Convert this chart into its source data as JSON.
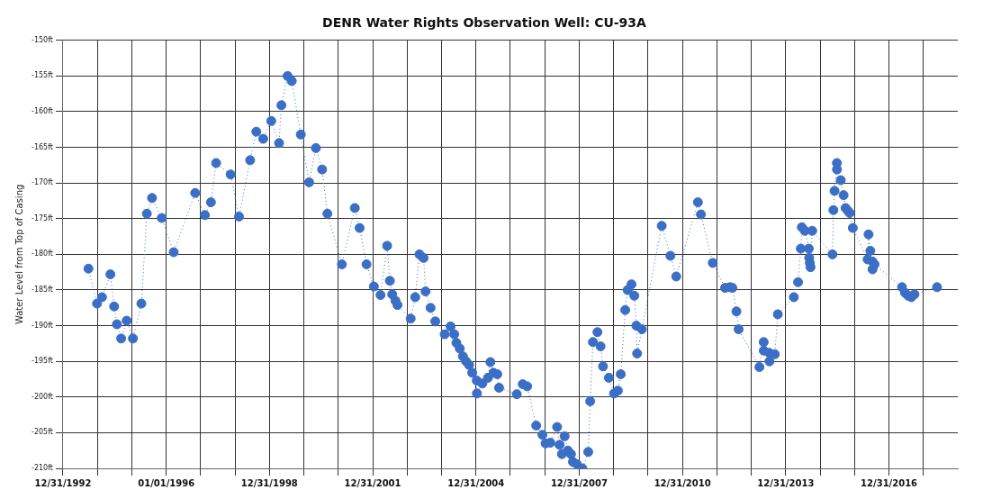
{
  "chart_data": {
    "type": "line",
    "title": "DENR Water Rights Observation Well: CU-93A",
    "ylabel": "Water Level from Top of Casing",
    "xlim": [
      "1992-12-31",
      "2018-12-31"
    ],
    "xticks": [
      {
        "value": "1992-12-31",
        "label": "12/31/1992"
      },
      {
        "value": "1993-12-31",
        "label": null
      },
      {
        "value": "1994-12-31",
        "label": null
      },
      {
        "value": "1996-01-01",
        "label": "01/01/1996"
      },
      {
        "value": "1996-12-31",
        "label": null
      },
      {
        "value": "1997-12-31",
        "label": null
      },
      {
        "value": "1998-12-31",
        "label": "12/31/1998"
      },
      {
        "value": "1999-12-31",
        "label": null
      },
      {
        "value": "2000-12-31",
        "label": null
      },
      {
        "value": "2001-12-31",
        "label": "12/31/2001"
      },
      {
        "value": "2002-12-31",
        "label": null
      },
      {
        "value": "2003-12-31",
        "label": null
      },
      {
        "value": "2004-12-31",
        "label": "12/31/2004"
      },
      {
        "value": "2005-12-31",
        "label": null
      },
      {
        "value": "2006-12-31",
        "label": null
      },
      {
        "value": "2007-12-31",
        "label": "12/31/2007"
      },
      {
        "value": "2008-12-31",
        "label": null
      },
      {
        "value": "2009-12-31",
        "label": null
      },
      {
        "value": "2010-12-31",
        "label": "12/31/2010"
      },
      {
        "value": "2011-12-31",
        "label": null
      },
      {
        "value": "2012-12-31",
        "label": null
      },
      {
        "value": "2013-12-31",
        "label": "12/31/2013"
      },
      {
        "value": "2014-12-31",
        "label": null
      },
      {
        "value": "2015-12-31",
        "label": null
      },
      {
        "value": "2016-12-31",
        "label": "12/31/2016"
      },
      {
        "value": "2017-12-31",
        "label": null
      }
    ],
    "ylim": [
      -210,
      -150
    ],
    "yticks": [
      {
        "value": -150,
        "label": "-150ft"
      },
      {
        "value": -155,
        "label": "-155ft"
      },
      {
        "value": -160,
        "label": "-160ft"
      },
      {
        "value": -165,
        "label": "-165ft"
      },
      {
        "value": -170,
        "label": "-170ft"
      },
      {
        "value": -175,
        "label": "-175ft"
      },
      {
        "value": -180,
        "label": "-180ft"
      },
      {
        "value": -185,
        "label": "-185ft"
      },
      {
        "value": -190,
        "label": "-190ft"
      },
      {
        "value": -195,
        "label": "-195ft"
      },
      {
        "value": -200,
        "label": "-200ft"
      },
      {
        "value": -205,
        "label": "-205ft"
      },
      {
        "value": -210,
        "label": "-210ft"
      }
    ],
    "grid": true,
    "legend": false,
    "marker": "circle",
    "line_style": "dotted",
    "x": [
      "1993-09-27",
      "1993-12-27",
      "1994-02-18",
      "1994-05-18",
      "1994-06-27",
      "1994-07-26",
      "1994-09-09",
      "1994-11-07",
      "1995-01-12",
      "1995-04-12",
      "1995-06-09",
      "1995-08-03",
      "1995-11-14",
      "1996-03-20",
      "1996-11-03",
      "1997-02-14",
      "1997-04-19",
      "1997-06-13",
      "1997-11-14",
      "1998-02-11",
      "1998-06-09",
      "1998-08-14",
      "1998-10-26",
      "1999-01-19",
      "1999-04-12",
      "1999-05-07",
      "1999-07-12",
      "1999-08-25",
      "1999-11-29",
      "2000-02-25",
      "2000-05-07",
      "2000-07-12",
      "2000-09-06",
      "2001-02-07",
      "2001-06-24",
      "2001-08-14",
      "2001-10-26",
      "2002-01-12",
      "2002-03-24",
      "2002-06-02",
      "2002-07-01",
      "2002-07-26",
      "2002-08-29",
      "2002-09-20",
      "2003-02-07",
      "2003-03-27",
      "2003-05-11",
      "2003-06-24",
      "2003-07-15",
      "2003-09-06",
      "2003-10-26",
      "2004-02-03",
      "2004-04-05",
      "2004-05-14",
      "2004-06-06",
      "2004-07-12",
      "2004-08-14",
      "2004-09-17",
      "2004-10-19",
      "2004-11-21",
      "2005-01-08",
      "2005-01-10",
      "2005-03-09",
      "2005-05-07",
      "2005-06-02",
      "2005-07-05",
      "2005-08-14",
      "2005-09-02",
      "2006-03-09",
      "2006-05-11",
      "2006-06-27",
      "2006-10-01",
      "2006-12-06",
      "2007-01-08",
      "2007-02-28",
      "2007-05-11",
      "2007-06-06",
      "2007-07-01",
      "2007-07-30",
      "2007-09-02",
      "2007-10-05",
      "2007-10-26",
      "2007-12-06",
      "2008-02-03",
      "2008-04-05",
      "2008-04-26",
      "2008-05-25",
      "2008-07-12",
      "2008-08-14",
      "2008-09-09",
      "2008-11-10",
      "2009-01-04",
      "2009-02-14",
      "2009-03-16",
      "2009-05-03",
      "2009-05-28",
      "2009-07-08",
      "2009-08-07",
      "2009-08-29",
      "2009-09-06",
      "2009-10-26",
      "2010-05-25",
      "2010-08-25",
      "2010-10-26",
      "2011-06-13",
      "2011-07-15",
      "2011-11-18",
      "2012-03-27",
      "2012-05-18",
      "2012-06-13",
      "2012-07-26",
      "2012-08-18",
      "2013-03-27",
      "2013-05-11",
      "2013-05-12",
      "2013-07-08",
      "2013-07-11",
      "2013-09-06",
      "2013-10-08",
      "2014-03-27",
      "2014-05-11",
      "2014-06-09",
      "2014-06-20",
      "2014-07-22",
      "2014-09-02",
      "2014-09-06",
      "2014-09-13",
      "2014-09-20",
      "2014-10-08",
      "2015-05-11",
      "2015-05-21",
      "2015-06-02",
      "2015-06-27",
      "2015-06-28",
      "2015-08-07",
      "2015-09-06",
      "2015-09-27",
      "2015-10-22",
      "2015-11-10",
      "2015-12-13",
      "2016-05-18",
      "2016-05-28",
      "2016-06-16",
      "2016-07-08",
      "2016-07-09",
      "2016-07-30",
      "2017-05-18",
      "2017-06-20",
      "2017-07-22",
      "2017-08-25",
      "2017-09-27",
      "2018-05-25"
    ],
    "series": [
      {
        "color": "#3b6fc6",
        "values": [
          -182.0,
          -186.9,
          -186.0,
          -182.8,
          -187.3,
          -189.8,
          -191.8,
          -189.3,
          -191.8,
          -186.9,
          -174.3,
          -172.1,
          -174.9,
          -179.7,
          -171.4,
          -174.5,
          -172.7,
          -167.2,
          -168.8,
          -174.7,
          -166.8,
          -162.8,
          -163.8,
          -161.3,
          -164.4,
          -159.1,
          -155.0,
          -155.7,
          -163.2,
          -169.9,
          -165.1,
          -168.1,
          -174.3,
          -181.4,
          -173.5,
          -176.3,
          -181.4,
          -184.5,
          -185.7,
          -178.8,
          -183.7,
          -185.6,
          -186.5,
          -187.1,
          -189.0,
          -186.0,
          -180.0,
          -180.5,
          -185.2,
          -187.5,
          -189.4,
          -191.2,
          -190.1,
          -191.2,
          -192.4,
          -193.2,
          -194.3,
          -195.0,
          -195.5,
          -196.6,
          -197.7,
          -199.5,
          -198.1,
          -197.3,
          -195.1,
          -196.6,
          -196.8,
          -198.7,
          -199.6,
          -198.2,
          -198.5,
          -204.0,
          -205.3,
          -206.5,
          -206.4,
          -204.2,
          -206.7,
          -208.0,
          -205.5,
          -207.5,
          -208.0,
          -209.1,
          -209.4,
          -210.0,
          -207.7,
          -200.6,
          -192.3,
          -190.9,
          -192.9,
          -195.7,
          -197.3,
          -199.5,
          -199.1,
          -196.8,
          -187.8,
          -185.0,
          -184.2,
          -185.8,
          -190.0,
          -193.9,
          -190.5,
          -176.0,
          -180.2,
          -183.1,
          -172.7,
          -174.4,
          -181.2,
          -184.7,
          -184.6,
          -184.7,
          -188.0,
          -190.5,
          -195.8,
          -192.3,
          -193.5,
          -193.8,
          -195.0,
          -194.0,
          -188.4,
          -186.0,
          -183.9,
          -179.2,
          -176.2,
          -176.7,
          -179.2,
          -180.5,
          -181.2,
          -181.8,
          -176.7,
          -180.0,
          -173.8,
          -171.1,
          -167.2,
          -168.1,
          -169.6,
          -171.7,
          -173.5,
          -173.9,
          -174.2,
          -176.3,
          -180.7,
          -177.2,
          -179.5,
          -181.0,
          -182.1,
          -181.4,
          -184.6,
          -185.4,
          -185.8,
          -186.0,
          -185.6,
          -184.6
        ]
      }
    ]
  }
}
